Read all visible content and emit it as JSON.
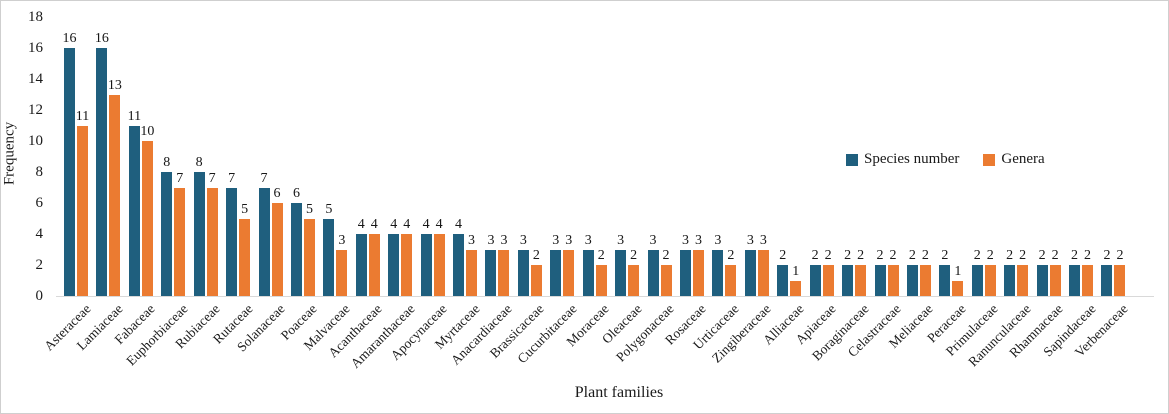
{
  "chart_data": {
    "type": "bar",
    "title": "",
    "xlabel": "Plant families",
    "ylabel": "Frequency",
    "ylim": [
      0,
      18
    ],
    "ytick_step": 2,
    "grid": false,
    "legend_position": "center-right",
    "data_labels": true,
    "categories": [
      "Asteraceae",
      "Lamiaceae",
      "Fabaceae",
      "Euphorbiaceae",
      "Rubiaceae",
      "Rutaceae",
      "Solanaceae",
      "Poaceae",
      "Malvaceae",
      "Acanthaceae",
      "Amaranthaceae",
      "Apocynaceae",
      "Myrtaceae",
      "Anacardiaceae",
      "Brassicaceae",
      "Cucurbitaceae",
      "Moraceae",
      "Oleaceae",
      "Polygonaceae",
      "Rosaceae",
      "Urticaceae",
      "Zingiberaceae",
      "Alliaceae",
      "Apiaceae",
      "Boraginaceae",
      "Celastraceae",
      "Meliaceae",
      "Peraceae",
      "Primulaceae",
      "Ranunculaceae",
      "Rhamnaceae",
      "Sapindaceae",
      "Verbenaceae"
    ],
    "series": [
      {
        "name": "Species number",
        "color": "#1F5F7E",
        "values": [
          16,
          16,
          11,
          8,
          8,
          7,
          7,
          6,
          5,
          4,
          4,
          4,
          4,
          3,
          3,
          3,
          3,
          3,
          3,
          3,
          3,
          3,
          2,
          2,
          2,
          2,
          2,
          2,
          2,
          2,
          2,
          2,
          2
        ]
      },
      {
        "name": "Genera",
        "color": "#EB7B31",
        "values": [
          11,
          13,
          10,
          7,
          7,
          5,
          6,
          5,
          3,
          4,
          4,
          4,
          3,
          3,
          2,
          3,
          2,
          2,
          2,
          3,
          2,
          3,
          1,
          2,
          2,
          2,
          2,
          1,
          2,
          2,
          2,
          2,
          2
        ]
      }
    ]
  }
}
